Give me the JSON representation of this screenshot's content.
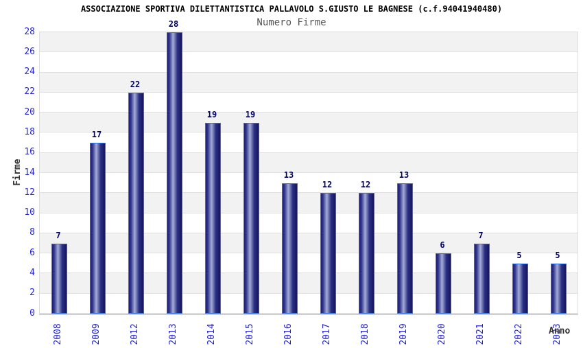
{
  "chart_data": {
    "type": "bar",
    "title": "ASSOCIAZIONE SPORTIVA DILETTANTISTICA PALLAVOLO S.GIUSTO LE BAGNESE (c.f.94041940480)",
    "subtitle": "Numero Firme",
    "xlabel": "Anno",
    "ylabel": "Firme",
    "categories": [
      "2008",
      "2009",
      "2012",
      "2013",
      "2014",
      "2015",
      "2016",
      "2017",
      "2018",
      "2019",
      "2020",
      "2021",
      "2022",
      "2023"
    ],
    "values": [
      7,
      17,
      22,
      28,
      19,
      19,
      13,
      12,
      12,
      13,
      6,
      7,
      5,
      5
    ],
    "yticks": [
      0,
      2,
      4,
      6,
      8,
      10,
      12,
      14,
      16,
      18,
      20,
      22,
      24,
      26,
      28
    ],
    "ylim": [
      0,
      28
    ],
    "legend": "none",
    "grid": "horizontal alternating bands every 2 units",
    "x_tick_rotation": -90,
    "colors": {
      "tick_label_blue": "#2323dd",
      "value_label_navy": "#000066",
      "title_black": "#000000",
      "subtitle_gray": "#555555",
      "axis_title_gray": "#333333",
      "band_gray": "#f2f2f2",
      "band_white": "#ffffff",
      "grid_line": "#e0e0e0",
      "bar_border_blue": "#2e73e6",
      "bar_dark_navy": "#1c1c74",
      "bar_light_center": "#a6acd8",
      "bar_dark_right": "#15155f"
    }
  }
}
